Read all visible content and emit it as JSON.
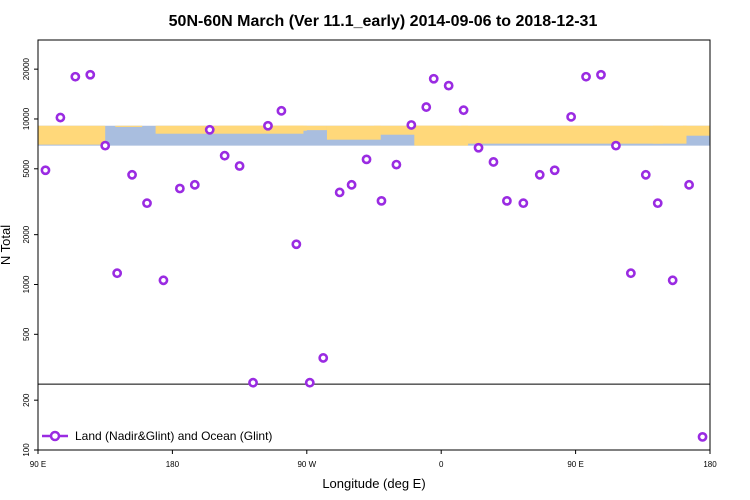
{
  "chart_data": {
    "type": "scatter",
    "title": "50N-60N March (Ver 11.1_early)   2014-09-06 to 2018-12-31",
    "xlabel": "Longitude (deg E)",
    "ylabel": "N Total",
    "yscale": "log",
    "xlim": [
      90,
      540
    ],
    "ylim": [
      100,
      30000
    ],
    "x_ticks": [
      {
        "value": 90,
        "label": "90 E"
      },
      {
        "value": 180,
        "label": "180"
      },
      {
        "value": 270,
        "label": "90 W"
      },
      {
        "value": 360,
        "label": "0"
      },
      {
        "value": 450,
        "label": "90 E"
      },
      {
        "value": 540,
        "label": "180"
      }
    ],
    "y_ticks": [
      {
        "value": 100,
        "label": "100"
      },
      {
        "value": 200,
        "label": "200"
      },
      {
        "value": 500,
        "label": "500"
      },
      {
        "value": 1000,
        "label": "1000"
      },
      {
        "value": 2000,
        "label": "2000"
      },
      {
        "value": 5000,
        "label": "5000"
      },
      {
        "value": 10000,
        "label": "10000"
      },
      {
        "value": 20000,
        "label": "20000"
      }
    ],
    "reference_line_y": 250,
    "map_band": {
      "y_from": 6900,
      "y_to": 9100,
      "land_color": "#ffd87a",
      "ocean_color": "#a9bedf"
    },
    "legend": {
      "label": "Land (Nadir&Glint) and Ocean (Glint)",
      "position": "bottom-left"
    },
    "series": [
      {
        "name": "Land (Nadir&Glint) and Ocean (Glint)",
        "color": "#9a2be2",
        "x": [
          95,
          105,
          115,
          125,
          135,
          143,
          153,
          163,
          174,
          185,
          195,
          205,
          215,
          225,
          234,
          244,
          253,
          263,
          272,
          281,
          292,
          300,
          310,
          320,
          330,
          340,
          350,
          355,
          365,
          375,
          385,
          395,
          404,
          415,
          426,
          436,
          447,
          457,
          467,
          477,
          487,
          497,
          505,
          515,
          526,
          535
        ],
        "y": [
          4900,
          10200,
          18000,
          18500,
          6900,
          1170,
          4600,
          3100,
          1060,
          3800,
          4000,
          8600,
          6000,
          5200,
          255,
          9100,
          11200,
          1750,
          255,
          360,
          3600,
          4000,
          5700,
          3200,
          5300,
          9200,
          11800,
          17500,
          15900,
          11300,
          6700,
          5500,
          3200,
          3100,
          4600,
          4900,
          10300,
          18000,
          18500,
          6900,
          1170,
          4600,
          3100,
          1060,
          4000,
          120
        ]
      }
    ]
  }
}
